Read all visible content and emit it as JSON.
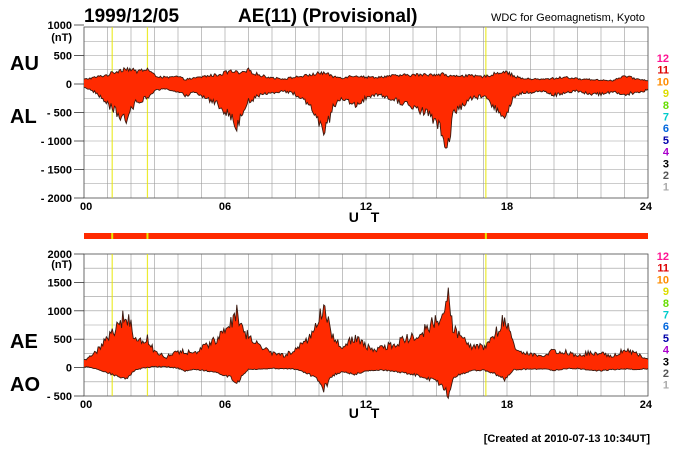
{
  "header": {
    "date": "1999/12/05",
    "title": "AE(11) (Provisional)",
    "source": "WDC for Geomagnetism, Kyoto"
  },
  "footer": {
    "created": "[Created at 2010-07-13 10:34UT]"
  },
  "colors": {
    "fill": "#ff2a00",
    "outline": "#3a1a10",
    "grid": "#9a9a9a",
    "highlight": "#e8e800"
  },
  "station_scale": {
    "labels": [
      "12",
      "11",
      "10",
      "9",
      "8",
      "7",
      "6",
      "5",
      "4",
      "3",
      "2",
      "1"
    ],
    "colors": [
      "#ff1493",
      "#dd0000",
      "#ff8c00",
      "#dddd00",
      "#66dd00",
      "#00cccc",
      "#0066dd",
      "#0000aa",
      "#aa00cc",
      "#000000",
      "#555555",
      "#aaaaaa"
    ]
  },
  "chart_data": [
    {
      "type": "area",
      "title": "AU / AL",
      "left_labels": [
        "AU",
        "AL"
      ],
      "xlabel": "U T",
      "ylabel": "(nT)",
      "xlim": [
        0,
        24
      ],
      "ylim": [
        -2000,
        1000
      ],
      "xticks": [
        "00",
        "06",
        "12",
        "18",
        "24"
      ],
      "yticks": [
        "1000",
        "500",
        "0",
        "- 500",
        "- 1000",
        "- 1500",
        "- 2000"
      ],
      "grid": true,
      "highlight_times": [
        1.2,
        2.7,
        17.1
      ],
      "x": [
        0.0,
        0.5,
        1.0,
        1.5,
        1.8,
        2.2,
        2.7,
        3.0,
        3.5,
        4.0,
        4.3,
        4.7,
        5.2,
        5.7,
        6.2,
        6.5,
        6.7,
        7.0,
        7.5,
        8.0,
        8.5,
        9.0,
        9.5,
        9.9,
        10.2,
        10.6,
        11.0,
        11.5,
        12.0,
        12.5,
        13.0,
        13.5,
        14.0,
        14.5,
        15.0,
        15.3,
        15.5,
        15.7,
        16.0,
        16.5,
        17.0,
        17.5,
        17.9,
        18.3,
        18.7,
        19.0,
        19.5,
        20.0,
        20.5,
        21.0,
        21.5,
        22.0,
        22.5,
        23.0,
        23.5,
        24.0
      ],
      "series": [
        {
          "name": "AU",
          "values": [
            80,
            120,
            160,
            240,
            280,
            220,
            260,
            150,
            110,
            130,
            80,
            100,
            140,
            160,
            220,
            200,
            180,
            240,
            150,
            110,
            90,
            120,
            150,
            180,
            200,
            130,
            110,
            150,
            120,
            120,
            140,
            150,
            160,
            160,
            170,
            180,
            130,
            140,
            150,
            140,
            130,
            180,
            230,
            140,
            90,
            90,
            80,
            100,
            120,
            90,
            80,
            70,
            60,
            140,
            90,
            60
          ]
        },
        {
          "name": "AL",
          "values": [
            -50,
            -150,
            -350,
            -550,
            -650,
            -300,
            -250,
            -120,
            -80,
            -150,
            -200,
            -150,
            -250,
            -350,
            -550,
            -750,
            -500,
            -300,
            -200,
            -150,
            -120,
            -180,
            -350,
            -550,
            -950,
            -400,
            -250,
            -380,
            -250,
            -200,
            -250,
            -320,
            -400,
            -500,
            -650,
            -900,
            -1100,
            -550,
            -400,
            -250,
            -220,
            -400,
            -650,
            -220,
            -150,
            -150,
            -120,
            -200,
            -150,
            -120,
            -180,
            -180,
            -130,
            -180,
            -150,
            -100
          ]
        }
      ]
    },
    {
      "type": "area",
      "title": "AE / AO",
      "left_labels": [
        "AE",
        "AO"
      ],
      "xlabel": "U T",
      "ylabel": "(nT)",
      "xlim": [
        0,
        24
      ],
      "ylim": [
        -500,
        2000
      ],
      "xticks": [
        "00",
        "06",
        "12",
        "18",
        "24"
      ],
      "yticks": [
        "2000",
        "1500",
        "1000",
        "500",
        "0",
        "- 500"
      ],
      "grid": true,
      "highlight_times": [
        1.2,
        2.7,
        17.1
      ],
      "x": [
        0.0,
        0.5,
        1.0,
        1.5,
        1.8,
        2.2,
        2.7,
        3.0,
        3.5,
        4.0,
        4.3,
        4.7,
        5.2,
        5.7,
        6.2,
        6.5,
        6.7,
        7.0,
        7.5,
        8.0,
        8.5,
        9.0,
        9.5,
        9.9,
        10.2,
        10.6,
        11.0,
        11.5,
        12.0,
        12.5,
        13.0,
        13.5,
        14.0,
        14.5,
        15.0,
        15.3,
        15.5,
        15.7,
        16.0,
        16.5,
        17.0,
        17.5,
        17.9,
        18.3,
        18.7,
        19.0,
        19.5,
        20.0,
        20.5,
        21.0,
        21.5,
        22.0,
        22.5,
        23.0,
        23.5,
        24.0
      ],
      "series": [
        {
          "name": "AE",
          "values": [
            130,
            270,
            510,
            790,
            930,
            520,
            510,
            270,
            190,
            280,
            280,
            250,
            390,
            510,
            770,
            950,
            680,
            540,
            350,
            260,
            210,
            300,
            500,
            730,
            1150,
            530,
            360,
            530,
            370,
            320,
            390,
            470,
            560,
            660,
            820,
            1080,
            1230,
            690,
            550,
            390,
            350,
            580,
            880,
            360,
            240,
            240,
            200,
            300,
            270,
            210,
            260,
            250,
            190,
            320,
            240,
            160
          ]
        },
        {
          "name": "AO",
          "values": [
            15,
            -15,
            -95,
            -155,
            -185,
            -40,
            5,
            15,
            15,
            -10,
            -60,
            -25,
            -55,
            -95,
            -165,
            -275,
            -160,
            -30,
            -25,
            -20,
            -15,
            -30,
            -100,
            -185,
            -375,
            -135,
            -70,
            -115,
            -65,
            -40,
            -55,
            -85,
            -120,
            -170,
            -240,
            -360,
            -485,
            -205,
            -125,
            -55,
            -45,
            -110,
            -210,
            -40,
            -30,
            -30,
            -20,
            -50,
            -15,
            -15,
            -50,
            -55,
            -35,
            -20,
            -30,
            -20
          ]
        }
      ]
    }
  ]
}
